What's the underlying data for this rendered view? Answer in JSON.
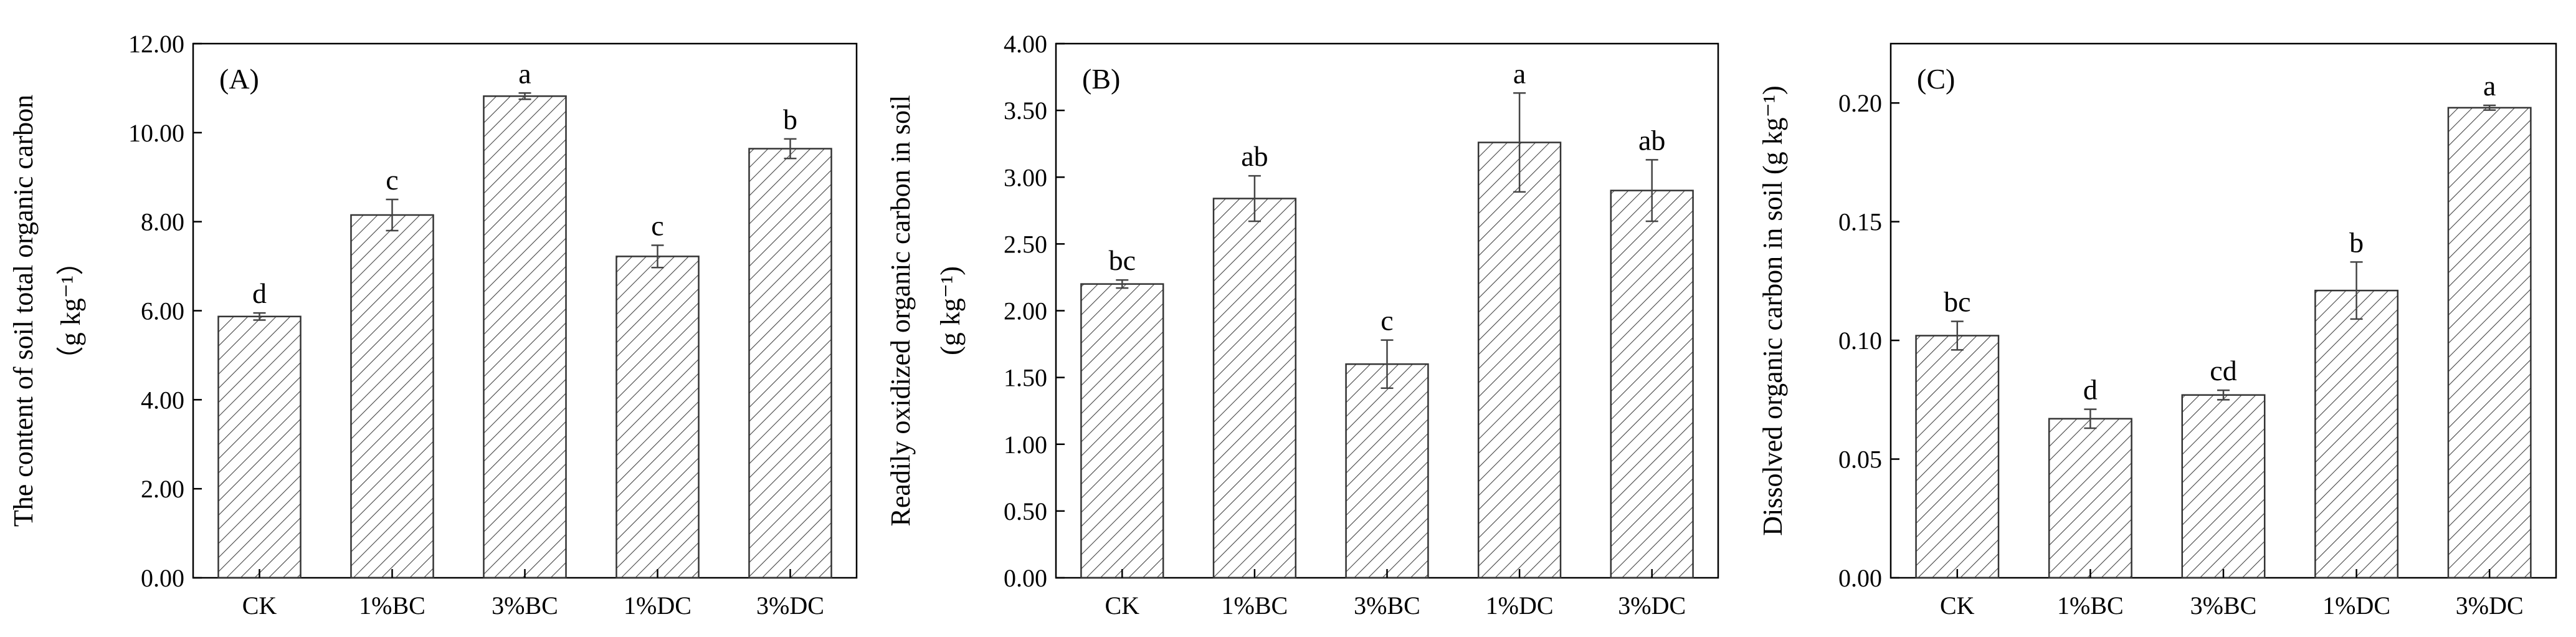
{
  "chart_data": [
    {
      "type": "bar",
      "panel_label": "(A)",
      "categories": [
        "CK",
        "1%BC",
        "3%BC",
        "1%DC",
        "3%DC"
      ],
      "values": [
        5.87,
        8.15,
        10.82,
        7.22,
        9.64
      ],
      "errors": [
        0.08,
        0.35,
        0.07,
        0.25,
        0.22
      ],
      "significance": [
        "d",
        "c",
        "a",
        "c",
        "b"
      ],
      "ylabel_lines": [
        "The content of soil total organic carbon",
        "（g kg⁻¹）"
      ],
      "ylim": [
        0,
        12
      ],
      "yticks": [
        0,
        2,
        4,
        6,
        8,
        10,
        12
      ],
      "ytick_labels": [
        "0.00",
        "2.00",
        "4.00",
        "6.00",
        "8.00",
        "10.00",
        "12.00"
      ],
      "grid": false,
      "bar_fill": "hatched"
    },
    {
      "type": "bar",
      "panel_label": "(B)",
      "categories": [
        "CK",
        "1%BC",
        "3%BC",
        "1%DC",
        "3%DC"
      ],
      "values": [
        2.2,
        2.84,
        1.6,
        3.26,
        2.9
      ],
      "errors": [
        0.03,
        0.17,
        0.18,
        0.37,
        0.23
      ],
      "significance": [
        "bc",
        "ab",
        "c",
        "a",
        "ab"
      ],
      "ylabel_lines": [
        "Readily oxidized organic carbon in soil",
        "(g kg⁻¹)"
      ],
      "ylim": [
        0,
        4
      ],
      "yticks": [
        0,
        0.5,
        1,
        1.5,
        2,
        2.5,
        3,
        3.5,
        4
      ],
      "ytick_labels": [
        "0.00",
        "0.50",
        "1.00",
        "1.50",
        "2.00",
        "2.50",
        "3.00",
        "3.50",
        "4.00"
      ],
      "grid": false,
      "bar_fill": "hatched"
    },
    {
      "type": "bar",
      "panel_label": "(C)",
      "categories": [
        "CK",
        "1%BC",
        "3%BC",
        "1%DC",
        "3%DC"
      ],
      "values": [
        0.102,
        0.067,
        0.077,
        0.121,
        0.198
      ],
      "errors": [
        0.006,
        0.004,
        0.002,
        0.012,
        0.001
      ],
      "significance": [
        "bc",
        "d",
        "cd",
        "b",
        "a"
      ],
      "ylabel_lines": [
        "Dissolved organic carbon in soil (g kg⁻¹)"
      ],
      "ylim": [
        0,
        0.225
      ],
      "yticks": [
        0,
        0.05,
        0.1,
        0.15,
        0.2
      ],
      "ytick_labels": [
        "0.00",
        "0.05",
        "0.10",
        "0.15",
        "0.20"
      ],
      "grid": false,
      "bar_fill": "hatched"
    }
  ]
}
